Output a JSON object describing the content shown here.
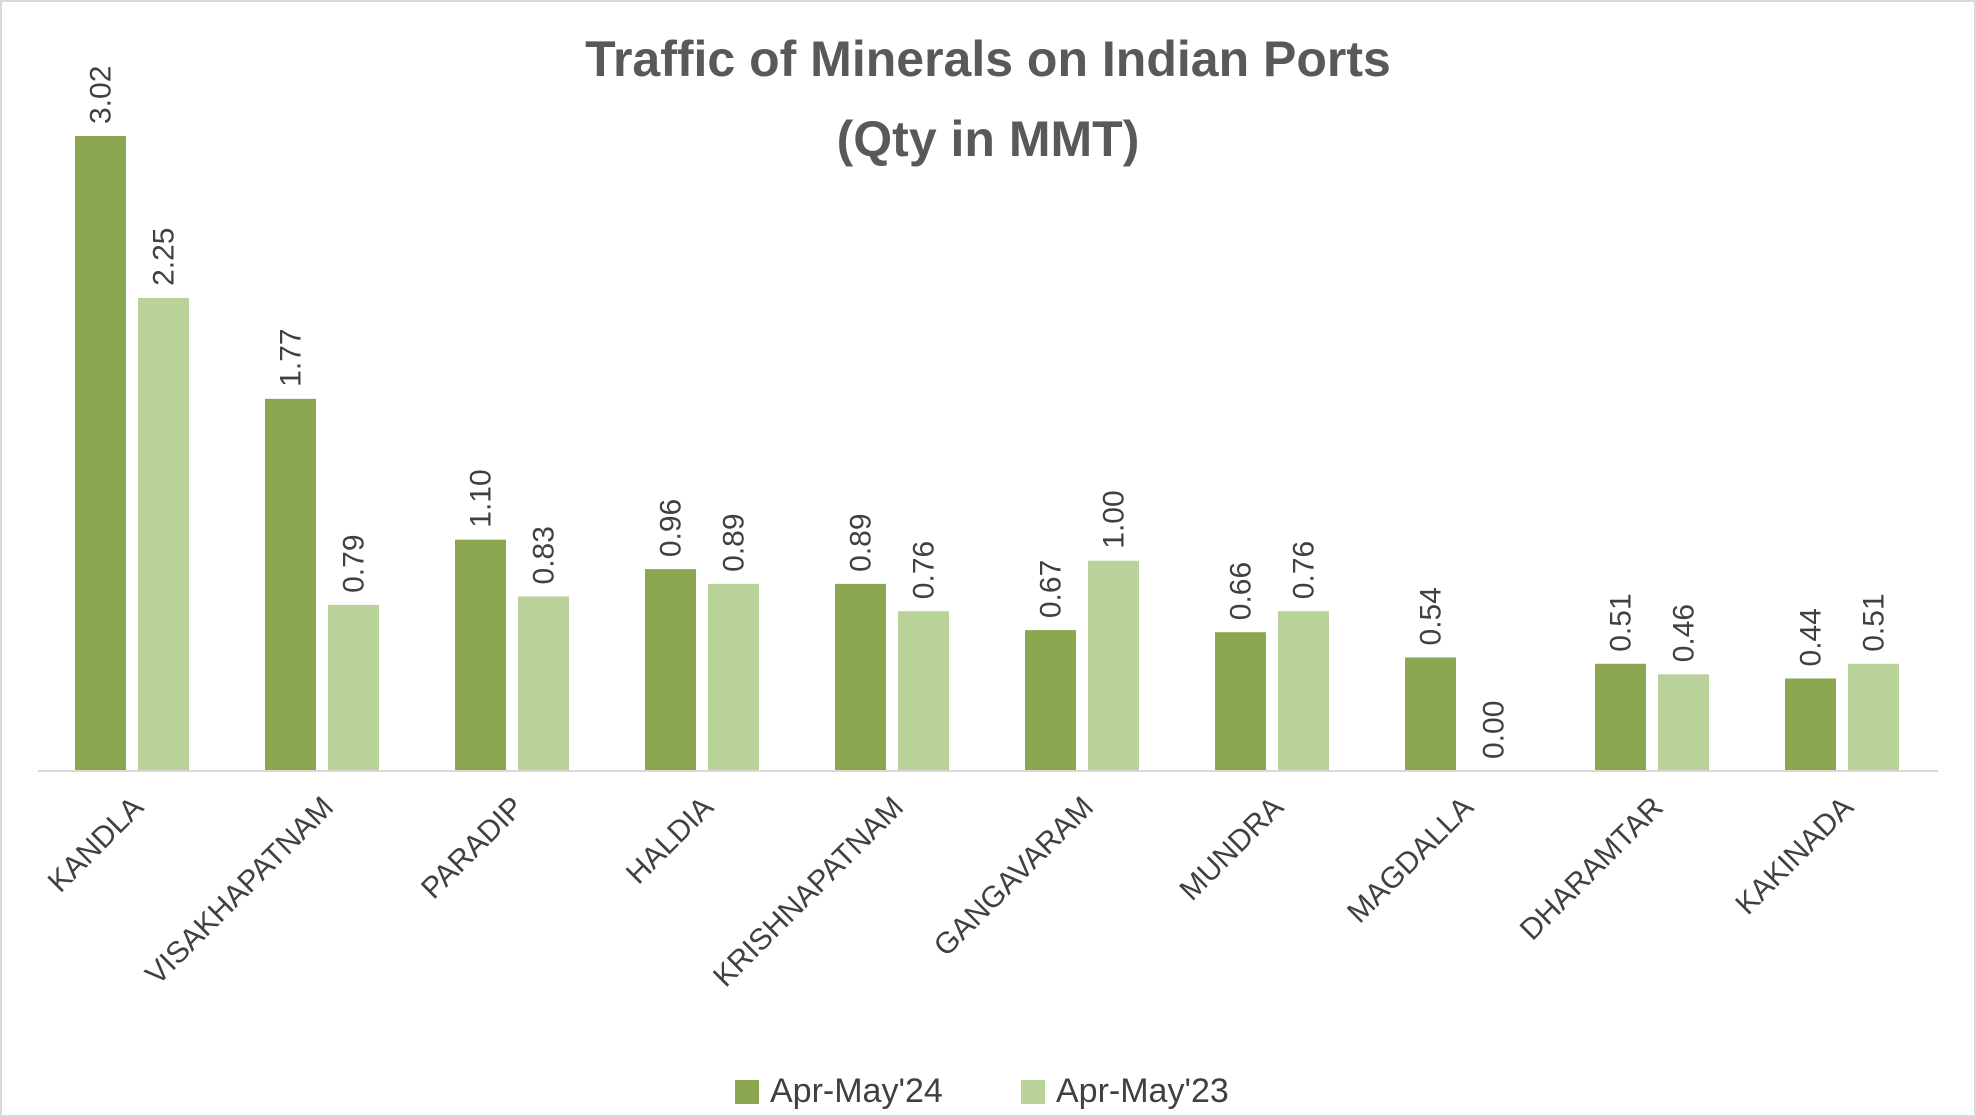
{
  "chart_data": {
    "type": "bar",
    "title": "Traffic of Minerals on Indian Ports",
    "subtitle": "(Qty in MMT)",
    "categories": [
      "KANDLA",
      "VISAKHAPATNAM",
      "PARADIP",
      "HALDIA",
      "KRISHNAPATNAM",
      "GANGAVARAM",
      "MUNDRA",
      "MAGDALLA",
      "DHARAMTAR",
      "KAKINADA"
    ],
    "series": [
      {
        "name": "Apr-May'24",
        "color": "#8aa64e",
        "values": [
          3.02,
          1.77,
          1.1,
          0.96,
          0.89,
          0.67,
          0.66,
          0.54,
          0.51,
          0.44
        ],
        "value_labels": [
          "3.02",
          "1.77",
          "1.10",
          "0.96",
          "0.89",
          "0.67",
          "0.66",
          "0.54",
          "0.51",
          "0.44"
        ]
      },
      {
        "name": "Apr-May'23",
        "color": "#b9d29a",
        "values": [
          2.25,
          0.79,
          0.83,
          0.89,
          0.76,
          1.0,
          0.76,
          0.0,
          0.46,
          0.51
        ],
        "value_labels": [
          "2.25",
          "0.79",
          "0.83",
          "0.89",
          "0.76",
          "1.00",
          "0.76",
          "0.00",
          "0.46",
          "0.51"
        ]
      }
    ],
    "legend": "bottom"
  }
}
